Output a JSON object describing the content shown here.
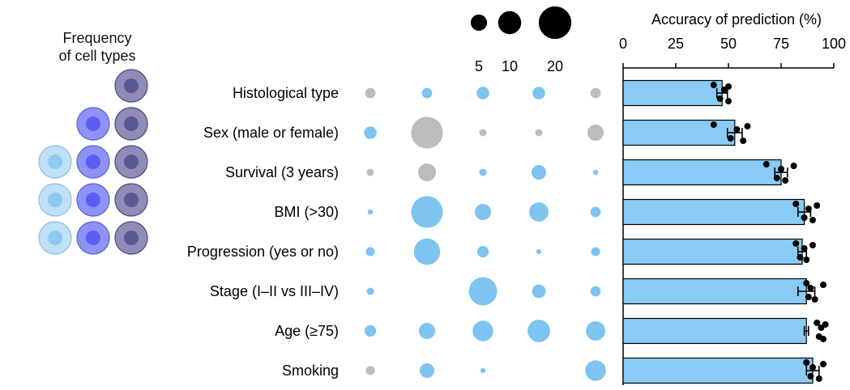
{
  "cell_panel": {
    "title_line1": "Frequency",
    "title_line2": "of cell types",
    "column_counts": [
      3,
      4,
      5
    ],
    "colors": {
      "light": {
        "fill": "#bfe0f6",
        "stroke": "#8fbde0",
        "nucleus": "#8ec9ee"
      },
      "mid": {
        "fill": "#8f93f6",
        "stroke": "#5a60d4",
        "nucleus": "#5b5ef0"
      },
      "dark": {
        "fill": "#8e8cb8",
        "stroke": "#4a4878",
        "nucleus": "#5a5891"
      }
    }
  },
  "size_legend": {
    "values": [
      5,
      10,
      20
    ],
    "labels": [
      "5",
      "10",
      "20"
    ],
    "color": "#000000"
  },
  "colors": {
    "blue": "#7dc4f0",
    "gray": "#bcbcbc",
    "bar_fill": "#89cbf5",
    "bar_stroke": "#000000"
  },
  "chart_data": {
    "type": "bar",
    "orientation": "horizontal",
    "title": "",
    "xlabel": "Accuracy of prediction (%)",
    "xlim": [
      0,
      100
    ],
    "xticks": [
      0,
      25,
      50,
      75,
      100
    ],
    "xtick_labels": [
      "0",
      "25",
      "50",
      "75",
      "100"
    ],
    "categories": [
      "Histological type",
      "Sex (male or female)",
      "Survival (3 years)",
      "BMI (>30)",
      "Progression (yes or no)",
      "Stage (I–II vs III–IV)",
      "Age (≥75)",
      "Smoking"
    ],
    "values": [
      47,
      53,
      75,
      86,
      85,
      87,
      87,
      90
    ],
    "error": [
      2.5,
      3.5,
      3,
      3,
      2,
      4,
      1,
      3
    ],
    "points": [
      [
        43,
        46,
        48,
        50,
        50
      ],
      [
        43,
        51,
        54,
        57,
        59
      ],
      [
        68,
        73,
        75,
        77,
        81
      ],
      [
        82,
        86,
        88,
        90,
        92
      ],
      [
        82,
        84,
        86,
        87,
        90
      ],
      [
        87,
        88,
        89,
        91,
        95
      ],
      [
        92,
        93,
        94,
        95,
        96
      ],
      [
        87,
        89,
        90,
        93,
        95
      ]
    ],
    "dot_matrix": {
      "note_columns": 5,
      "sizes": [
        [
          2,
          2,
          3,
          3,
          2
        ],
        [
          3,
          19,
          1,
          1,
          5
        ],
        [
          1,
          6,
          1,
          4,
          0.5
        ],
        [
          0.5,
          19,
          5,
          7,
          2
        ],
        [
          1.5,
          13,
          2.5,
          0.5,
          1.5
        ],
        [
          1,
          0,
          15,
          3.5,
          2
        ],
        [
          2.5,
          5,
          8,
          9.5,
          7
        ],
        [
          1.5,
          4,
          0.5,
          0,
          8
        ]
      ],
      "colors": [
        [
          "gray",
          "blue",
          "blue",
          "blue",
          "gray"
        ],
        [
          "blue",
          "gray",
          "gray",
          "gray",
          "gray"
        ],
        [
          "gray",
          "gray",
          "blue",
          "blue",
          "blue"
        ],
        [
          "blue",
          "blue",
          "blue",
          "blue",
          "blue"
        ],
        [
          "blue",
          "blue",
          "blue",
          "blue",
          "blue"
        ],
        [
          "blue",
          "blue",
          "blue",
          "blue",
          "blue"
        ],
        [
          "blue",
          "blue",
          "blue",
          "blue",
          "blue"
        ],
        [
          "gray",
          "blue",
          "blue",
          "blue",
          "blue"
        ]
      ]
    }
  }
}
